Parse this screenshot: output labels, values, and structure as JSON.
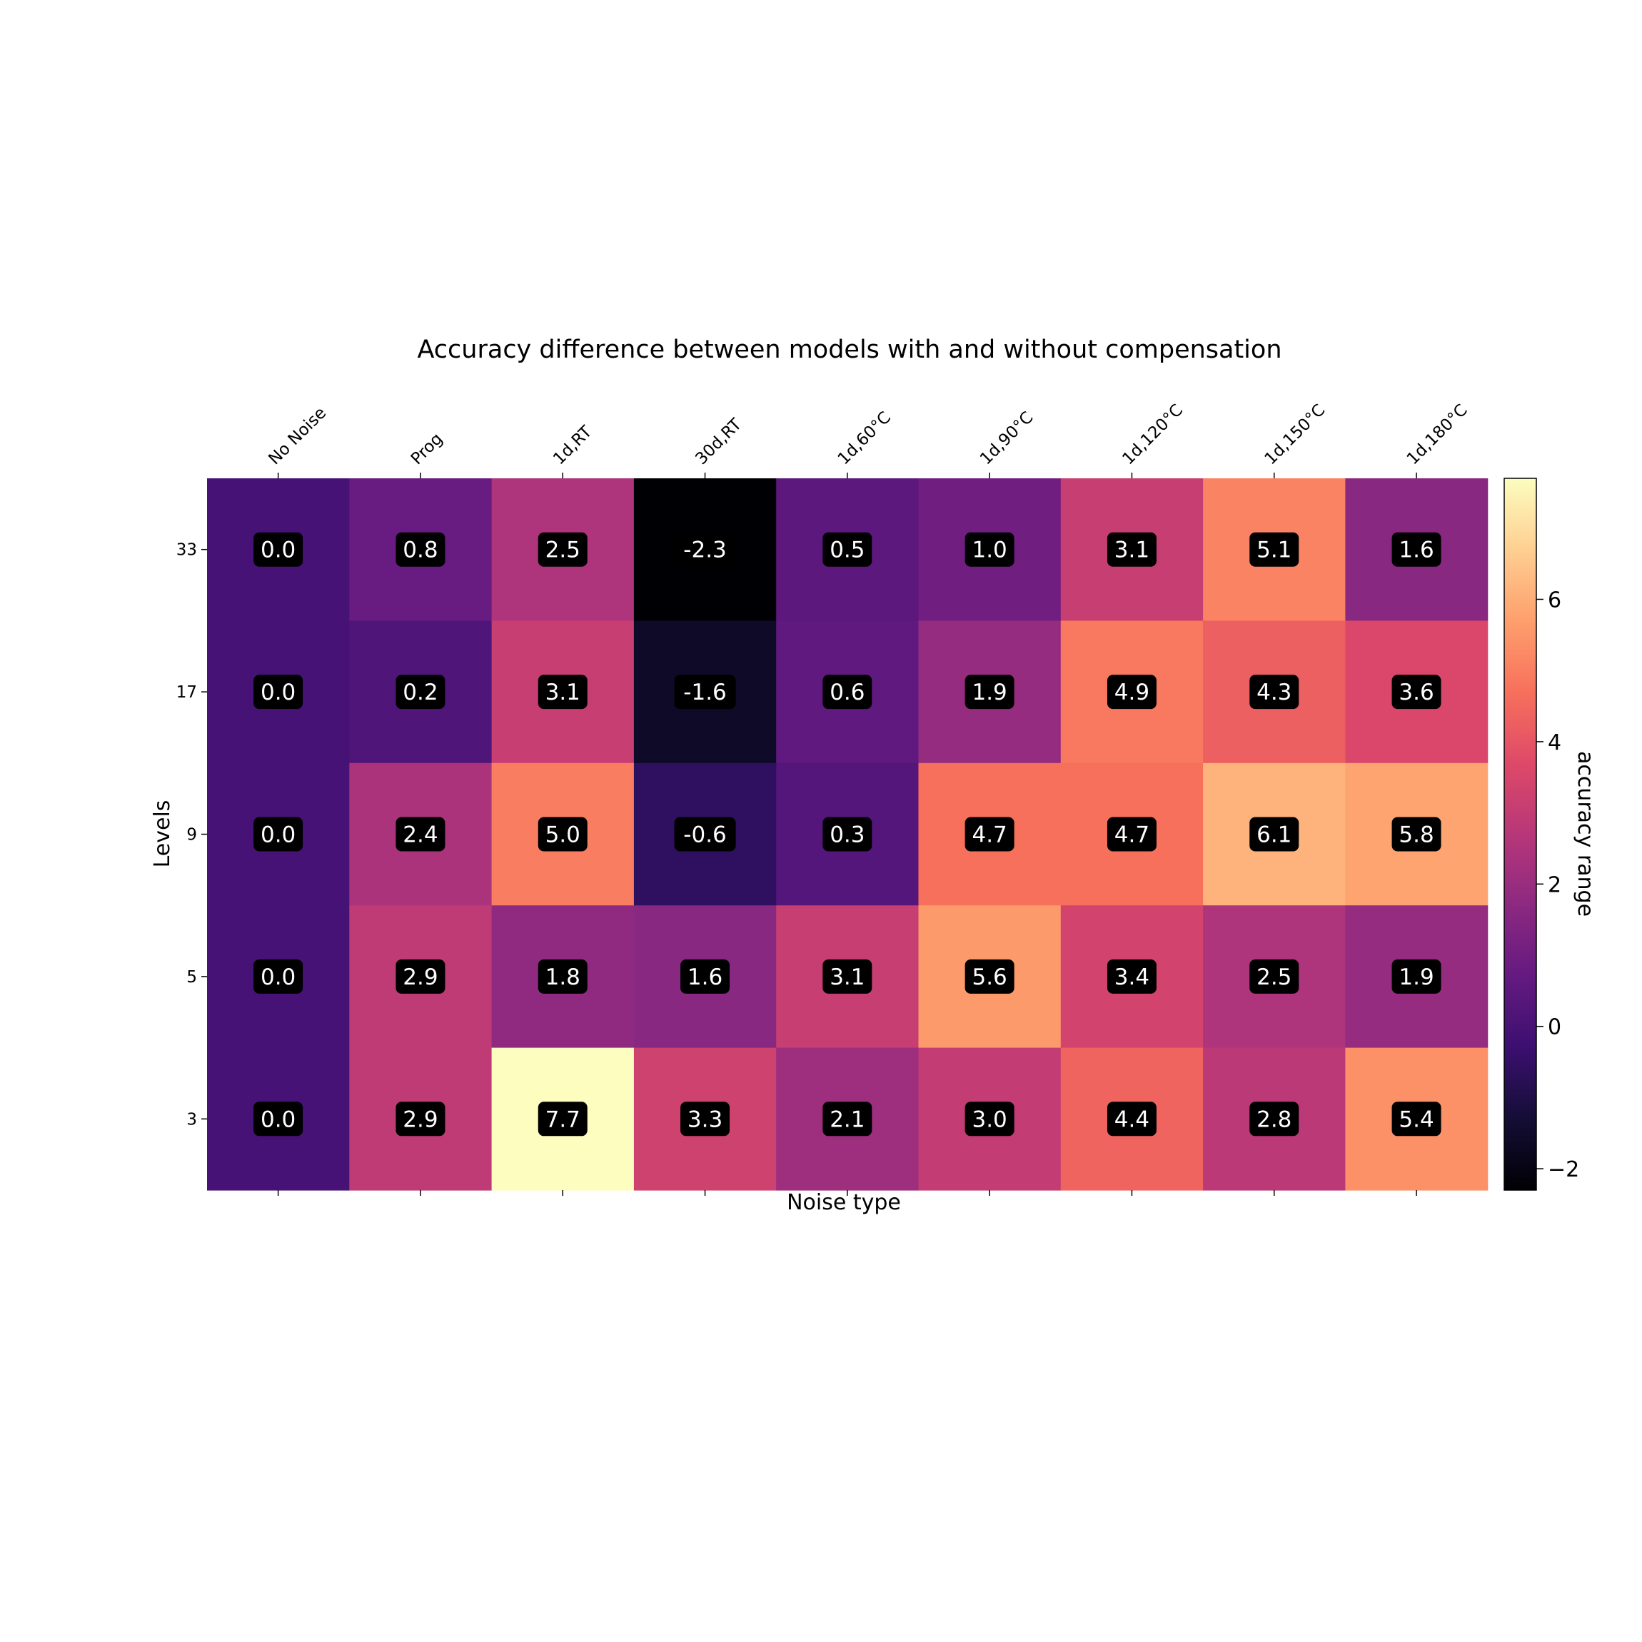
{
  "chart_data": {
    "type": "heatmap",
    "title": "Accuracy difference between models with and without compensation",
    "xlabel": "Noise type",
    "ylabel": "Levels",
    "x_categories": [
      "No Noise",
      "Prog",
      "1d,RT",
      "30d,RT",
      "1d,60°C",
      "1d,90°C",
      "1d,120°C",
      "1d,150°C",
      "1d,180°C"
    ],
    "y_categories": [
      "33",
      "17",
      "9",
      "5",
      "3"
    ],
    "values": [
      [
        0.0,
        0.8,
        2.5,
        -2.3,
        0.5,
        1.0,
        3.1,
        5.1,
        1.6
      ],
      [
        0.0,
        0.2,
        3.1,
        -1.6,
        0.6,
        1.9,
        4.9,
        4.3,
        3.6
      ],
      [
        0.0,
        2.4,
        5.0,
        -0.6,
        0.3,
        4.7,
        4.7,
        6.1,
        5.8
      ],
      [
        0.0,
        2.9,
        1.8,
        1.6,
        3.1,
        5.6,
        3.4,
        2.5,
        1.9
      ],
      [
        0.0,
        2.9,
        7.7,
        3.3,
        2.1,
        3.0,
        4.4,
        2.8,
        5.4
      ]
    ],
    "cell_labels": [
      [
        "0.0",
        "0.8",
        "2.5",
        "-2.3",
        "0.5",
        "1.0",
        "3.1",
        "5.1",
        "1.6"
      ],
      [
        "0.0",
        "0.2",
        "3.1",
        "-1.6",
        "0.6",
        "1.9",
        "4.9",
        "4.3",
        "3.6"
      ],
      [
        "0.0",
        "2.4",
        "5.0",
        "-0.6",
        "0.3",
        "4.7",
        "4.7",
        "6.1",
        "5.8"
      ],
      [
        "0.0",
        "2.9",
        "1.8",
        "1.6",
        "3.1",
        "5.6",
        "3.4",
        "2.5",
        "1.9"
      ],
      [
        "0.0",
        "2.9",
        "7.7",
        "3.3",
        "2.1",
        "3.0",
        "4.4",
        "2.8",
        "5.4"
      ]
    ],
    "colormap": "magma",
    "colorbar": {
      "label": "accuracy range",
      "vmin": -2.3,
      "vmax": 7.7,
      "ticks": [
        -2,
        0,
        2,
        4,
        6
      ],
      "tick_labels": [
        "−2",
        "0",
        "2",
        "4",
        "6"
      ]
    },
    "x_tick_position": "top",
    "x_tick_rotation": 45,
    "grid": false
  }
}
